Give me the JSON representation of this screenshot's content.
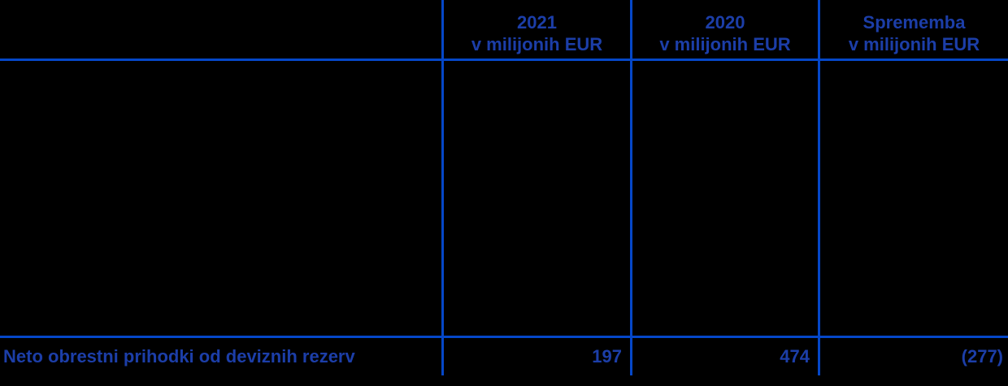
{
  "colors": {
    "background": "#000000",
    "text": "#1C3EA8",
    "line": "#0547C8"
  },
  "table": {
    "header": [
      {
        "line1": "",
        "line2": ""
      },
      {
        "line1": "2021",
        "line2": "v milijonih EUR"
      },
      {
        "line1": "2020",
        "line2": "v milijonih EUR"
      },
      {
        "line1": "Sprememba",
        "line2": "v milijonih EUR"
      }
    ],
    "rows": [
      {
        "label": "Neto obrestni prihodki od deviznih rezerv",
        "values": [
          "197",
          "474",
          "(277)"
        ]
      }
    ]
  }
}
